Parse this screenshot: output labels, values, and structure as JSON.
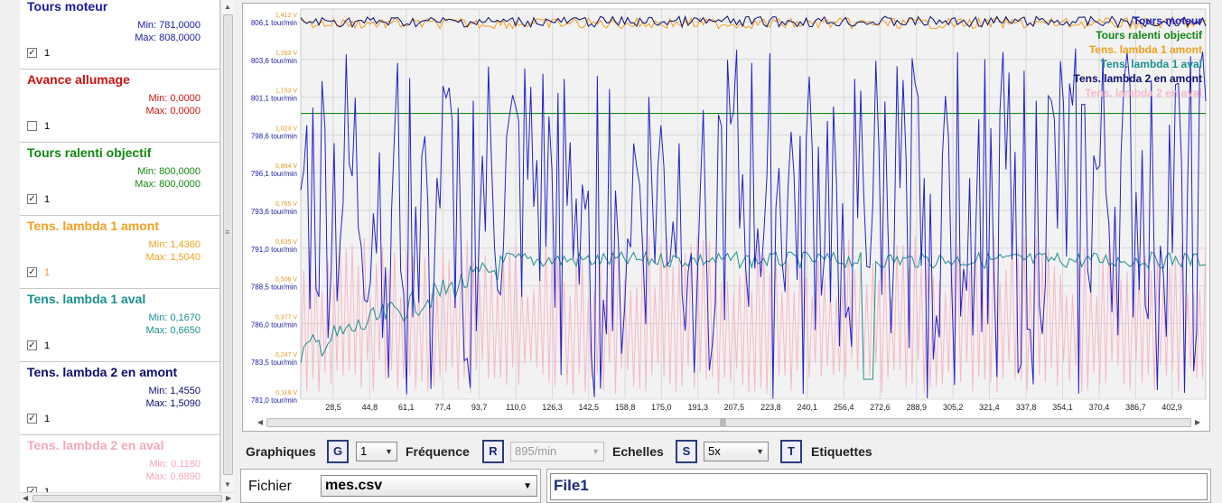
{
  "sensors": [
    {
      "name": "Tours moteur",
      "color": "#1a1aa6",
      "min": "Min: 781,0000",
      "max": "Max: 808,0000",
      "checked": true,
      "index": "1"
    },
    {
      "name": "Avance allumage",
      "color": "#cc1111",
      "min": "Min: 0,0000",
      "max": "Max: 0,0000",
      "checked": false,
      "index": "1"
    },
    {
      "name": "Tours ralenti objectif",
      "color": "#118811",
      "min": "Min: 800,0000",
      "max": "Max: 800,0000",
      "checked": true,
      "index": "1"
    },
    {
      "name": "Tens. lambda 1 amont",
      "color": "#f0a020",
      "min": "Min: 1,4360",
      "max": "Max: 1,5040",
      "checked": true,
      "index": "1"
    },
    {
      "name": "Tens. lambda 1 aval",
      "color": "#1a8f8f",
      "min": "Min: 0,1670",
      "max": "Max: 0,6650",
      "checked": true,
      "index": "1"
    },
    {
      "name": "Tens. lambda 2 en amont",
      "color": "#0d0d70",
      "min": "Min: 1,4550",
      "max": "Max: 1,5090",
      "checked": true,
      "index": "1"
    },
    {
      "name": "Tens. lambda 2 en aval",
      "color": "#f4a8b8",
      "min": "Min: 0,1180",
      "max": "Max: 0,6890",
      "checked": true,
      "index": "1"
    }
  ],
  "toolbar": {
    "graphiques_label": "Graphiques",
    "graphiques_key": "G",
    "graphiques_value": "1",
    "frequence_label": "Fréquence",
    "frequence_key": "R",
    "frequence_value": "895/min",
    "echelles_label": "Echelles",
    "echelles_key": "S",
    "echelles_value": "5x",
    "etiquettes_key": "T",
    "etiquettes_label": "Etiquettes"
  },
  "file": {
    "label": "Fichier",
    "selected": "mes.csv",
    "name": "File1"
  },
  "chart_data": {
    "type": "line",
    "x_ticks": [
      "28,5",
      "44,8",
      "61,1",
      "77,4",
      "93,7",
      "110,0",
      "126,3",
      "142,5",
      "158,8",
      "175,0",
      "191,3",
      "207,5",
      "223,8",
      "240,1",
      "256,4",
      "272,6",
      "288,9",
      "305,2",
      "321,4",
      "337,8",
      "354,1",
      "370,4",
      "386,7",
      "402,9"
    ],
    "y_ticks_rpm": [
      "806,1 tour/min",
      "803,6 tour/min",
      "801,1 tour/min",
      "798,6 tour/min",
      "796,1 tour/min",
      "793,6 tour/min",
      "791,0 tour/min",
      "788,5 tour/min",
      "786,0 tour/min",
      "783,5 tour/min",
      "781,0 tour/min"
    ],
    "y_ticks_volt": [
      "1,412 V",
      "1,283 V",
      "1,153 V",
      "1,024 V",
      "0,894 V",
      "0,765 V",
      "0,635 V",
      "0,506 V",
      "0,377 V",
      "0,247 V",
      "0,118 V"
    ],
    "x_range": [
      14,
      418
    ],
    "legend_position": "top-right",
    "series": [
      {
        "name": "Tours moteur",
        "color": "#2222c8"
      },
      {
        "name": "Tours ralenti objectif",
        "color": "#118811"
      },
      {
        "name": "Tens. lambda 1 amont",
        "color": "#f0a020"
      },
      {
        "name": "Tens. lambda 1 aval",
        "color": "#1a8f8f"
      },
      {
        "name": "Tens. lambda 2 en amont",
        "color": "#0d0d70"
      },
      {
        "name": "Tens. lambda 2 en aval",
        "color": "#f7b8c6"
      }
    ]
  }
}
